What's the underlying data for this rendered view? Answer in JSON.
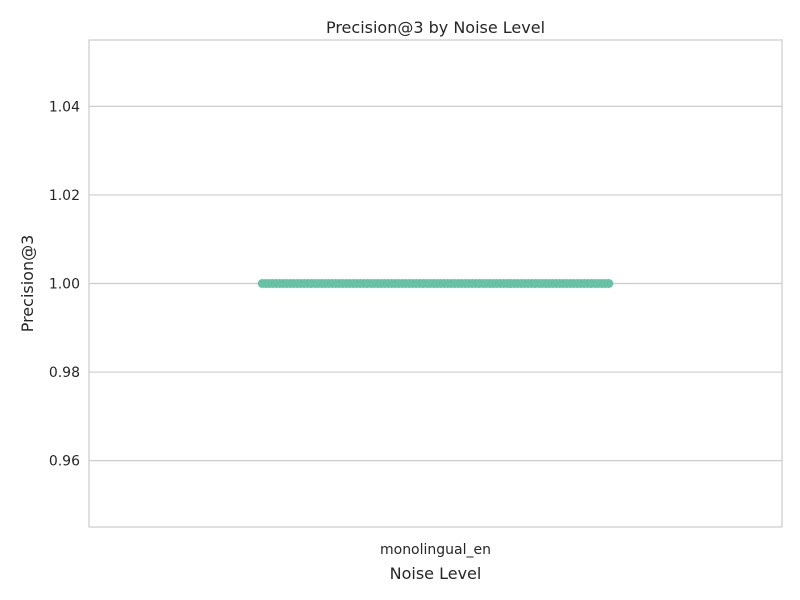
{
  "chart_data": {
    "type": "scatter",
    "title": "Precision@3 by Noise Level",
    "xlabel": "Noise Level",
    "ylabel": "Precision@3",
    "categories": [
      "monolingual_en"
    ],
    "ylim": [
      0.945,
      1.055
    ],
    "yticks": [
      0.96,
      0.98,
      1.0,
      1.02,
      1.04
    ],
    "ytick_labels": [
      "0.96",
      "0.98",
      "1.00",
      "1.02",
      "1.04"
    ],
    "grid": true,
    "series": [
      {
        "category": "monolingual_en",
        "values": [
          1.0,
          1.0,
          1.0,
          1.0,
          1.0,
          1.0,
          1.0,
          1.0,
          1.0,
          1.0,
          1.0,
          1.0,
          1.0,
          1.0,
          1.0,
          1.0,
          1.0,
          1.0,
          1.0,
          1.0,
          1.0,
          1.0,
          1.0,
          1.0,
          1.0,
          1.0,
          1.0,
          1.0,
          1.0,
          1.0,
          1.0,
          1.0,
          1.0,
          1.0,
          1.0,
          1.0,
          1.0,
          1.0,
          1.0,
          1.0,
          1.0,
          1.0,
          1.0,
          1.0,
          1.0,
          1.0,
          1.0,
          1.0,
          1.0,
          1.0,
          1.0,
          1.0,
          1.0,
          1.0,
          1.0,
          1.0,
          1.0,
          1.0,
          1.0,
          1.0,
          1.0,
          1.0,
          1.0,
          1.0,
          1.0,
          1.0,
          1.0,
          1.0,
          1.0,
          1.0,
          1.0,
          1.0,
          1.0,
          1.0,
          1.0,
          1.0,
          1.0,
          1.0,
          1.0,
          1.0,
          1.0,
          1.0,
          1.0,
          1.0,
          1.0,
          1.0,
          1.0,
          1.0,
          1.0,
          1.0,
          1.0,
          1.0,
          1.0,
          1.0,
          1.0,
          1.0,
          1.0,
          1.0,
          1.0,
          1.0
        ]
      }
    ],
    "colors": {
      "point": "#66c2a5",
      "grid": "#cccccc",
      "frame": "#cccccc",
      "text": "#262626"
    }
  }
}
